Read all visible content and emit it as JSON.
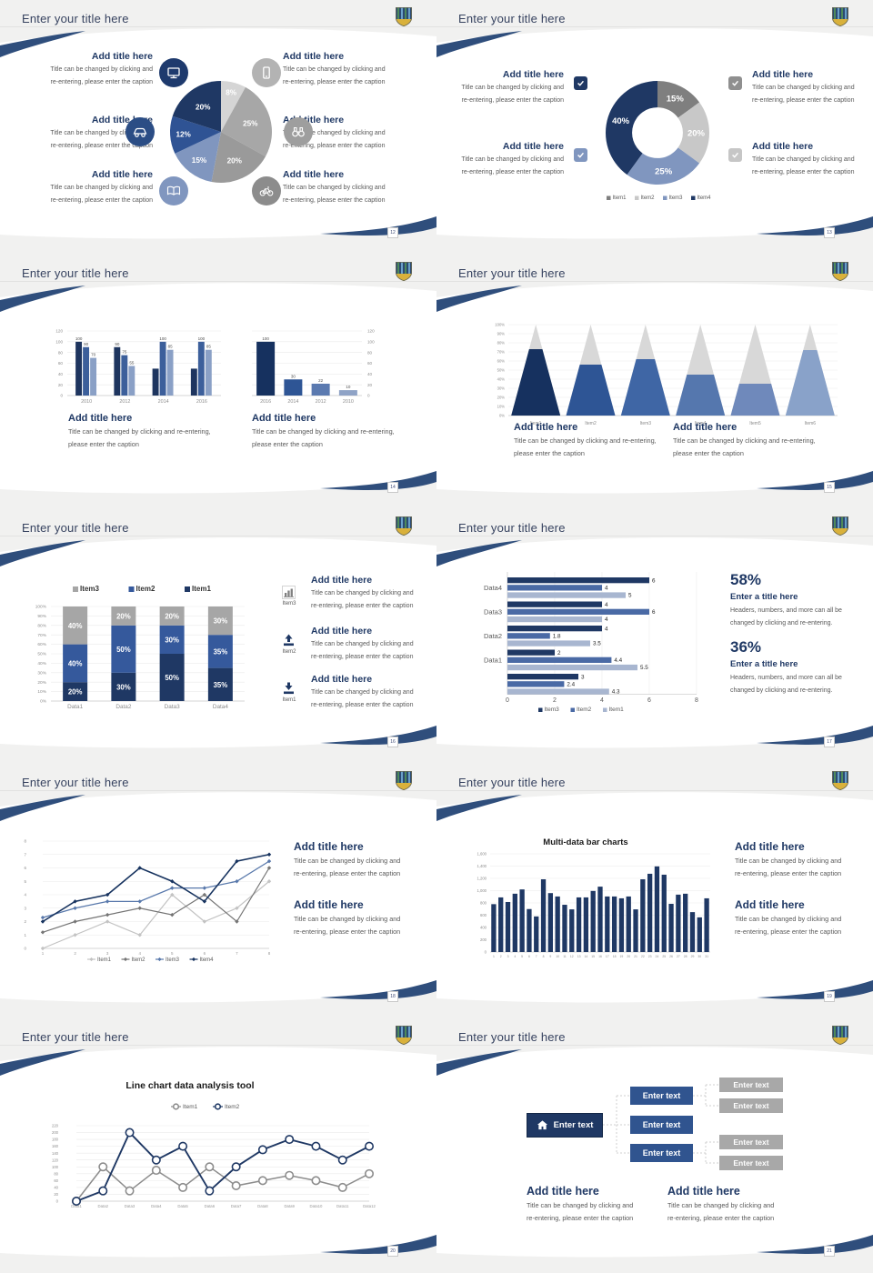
{
  "global": {
    "slide_title": "Enter your title here",
    "add_title": "Add title here",
    "enter_a_title": "Enter a title here",
    "enter_text": "Enter text",
    "captions": {
      "a1": "Title can be changed by clicking and",
      "a2": "re-entering, please enter the caption",
      "b1": "Title can be changed by clicking and re-entering,",
      "b2": "please enter the caption",
      "c1": "Headers, numbers, and more can all be",
      "c2": "changed by clicking and re-entering."
    },
    "colors": {
      "navy": "#1f3864",
      "blue": "#35599c",
      "blue_gray": "#8096bf",
      "gray": "#a6a6a6",
      "accent_stripe": "#2f4e7c"
    }
  },
  "slides": [
    {
      "page": "12",
      "icons": [
        "monitor",
        "smartphone",
        "car",
        "binoculars",
        "book",
        "bicycle"
      ]
    },
    {
      "page": "13",
      "icons": [
        "checkbox",
        "checkbox",
        "checkbox",
        "checkbox"
      ]
    },
    {
      "page": "14"
    },
    {
      "page": "15"
    },
    {
      "page": "16",
      "icons": [
        "bar-chart",
        "upload",
        "download"
      ],
      "icon_labels": [
        "Item3",
        "Item2",
        "Item1"
      ]
    },
    {
      "page": "17",
      "stat1": "58%",
      "stat2": "36%"
    },
    {
      "page": "18"
    },
    {
      "page": "19"
    },
    {
      "page": "20"
    },
    {
      "page": "21",
      "icons": [
        "home"
      ]
    }
  ],
  "chart_data": [
    {
      "id": "pie12",
      "type": "pie",
      "slices": [
        {
          "label": "8%",
          "value": 8,
          "color": "#d5d5d5"
        },
        {
          "label": "25%",
          "value": 25,
          "color": "#a7a7a7"
        },
        {
          "label": "20%",
          "value": 20,
          "color": "#9a9a9a"
        },
        {
          "label": "15%",
          "value": 15,
          "color": "#8096bf"
        },
        {
          "label": "12%",
          "value": 12,
          "color": "#2f5394"
        },
        {
          "label": "20%",
          "value": 20,
          "color": "#1f3864"
        }
      ]
    },
    {
      "id": "donut13",
      "type": "pie",
      "inner_ratio": 0.49,
      "slices": [
        {
          "label": "15%",
          "value": 15,
          "color": "#7f7f7f"
        },
        {
          "label": "20%",
          "value": 20,
          "color": "#c8c8c8"
        },
        {
          "label": "25%",
          "value": 25,
          "color": "#8096bf"
        },
        {
          "label": "40%",
          "value": 40,
          "color": "#1f3864"
        }
      ],
      "legend": [
        {
          "label": "Item1",
          "color": "#7f7f7f"
        },
        {
          "label": "Item2",
          "color": "#c8c8c8"
        },
        {
          "label": "Item3",
          "color": "#8096bf"
        },
        {
          "label": "Item4",
          "color": "#1f3864"
        }
      ]
    },
    {
      "id": "bars14a",
      "type": "bar",
      "categories": [
        "2010",
        "2012",
        "2014",
        "2016"
      ],
      "ylim": [
        0,
        120
      ],
      "yticks": [
        "0",
        "20",
        "40",
        "60",
        "80",
        "100",
        "120"
      ],
      "series": [
        {
          "name": "series1",
          "color": "#1e355f",
          "values": [
            100,
            90,
            50,
            50
          ],
          "labels": [
            "100",
            "90",
            null,
            null
          ]
        },
        {
          "name": "series2",
          "color": "#3c5f9b",
          "values": [
            90,
            75,
            100,
            100
          ],
          "labels": [
            "90",
            "75",
            "100",
            "100"
          ]
        },
        {
          "name": "series3",
          "color": "#8aa0c6",
          "values": [
            70,
            55,
            85,
            85
          ],
          "labels": [
            "70",
            "55",
            "85",
            "85"
          ]
        }
      ]
    },
    {
      "id": "bars14b",
      "type": "bar",
      "categories": [
        "2016",
        "2014",
        "2012",
        "2010"
      ],
      "ylim": [
        0,
        120
      ],
      "yticks": [
        "0",
        "20",
        "40",
        "60",
        "80",
        "100",
        "120"
      ],
      "values": [
        100,
        30,
        22,
        10
      ],
      "labels": [
        "100",
        "30",
        "22",
        "10"
      ],
      "bar_colors": [
        "#16315f",
        "#2e5595",
        "#5b7ab0",
        "#8fa3c6"
      ]
    },
    {
      "id": "cones15",
      "type": "cone",
      "categories": [
        "Item1",
        "Item2",
        "Item3",
        "Item4",
        "Item5",
        "Item6"
      ],
      "values": [
        73,
        56,
        62,
        45,
        35,
        72
      ],
      "colors": [
        "#16315f",
        "#2e5595",
        "#3f66a5",
        "#5577ae",
        "#6f89bb",
        "#89a2c9"
      ],
      "top_color": "#d8d8d8",
      "ylim": [
        0,
        100
      ],
      "yticks": [
        "0%",
        "10%",
        "20%",
        "30%",
        "40%",
        "50%",
        "60%",
        "70%",
        "80%",
        "90%",
        "100%"
      ]
    },
    {
      "id": "stack16",
      "type": "stacked_bar",
      "categories": [
        "Data1",
        "Data2",
        "Data3",
        "Data4"
      ],
      "ylim": [
        0,
        100
      ],
      "yticks": [
        "0%",
        "10%",
        "20%",
        "30%",
        "40%",
        "50%",
        "60%",
        "70%",
        "80%",
        "90%",
        "100%"
      ],
      "series": [
        {
          "name": "Item1",
          "color": "#1f3864",
          "values": [
            20,
            30,
            50,
            35
          ]
        },
        {
          "name": "Item2",
          "color": "#35599c",
          "values": [
            40,
            50,
            30,
            35
          ]
        },
        {
          "name": "Item3",
          "color": "#a6a6a6",
          "values": [
            40,
            20,
            20,
            30
          ]
        }
      ],
      "legend": [
        {
          "label": "Item3",
          "color": "#a6a6a6"
        },
        {
          "label": "Item2",
          "color": "#35599c"
        },
        {
          "label": "Item1",
          "color": "#1f3864"
        }
      ]
    },
    {
      "id": "hbars17",
      "type": "hbar",
      "xlim": [
        0,
        8
      ],
      "xticks": [
        "0",
        "2",
        "4",
        "6",
        "8"
      ],
      "colors": [
        "#1f3864",
        "#4a6aa5",
        "#a8b6d0"
      ],
      "groups": [
        {
          "label": "Data4",
          "values": [
            6,
            4,
            5
          ]
        },
        {
          "label": "Data3",
          "values": [
            4,
            6,
            4
          ]
        },
        {
          "label": "Data2",
          "values": [
            4,
            1.8,
            3.5
          ]
        },
        {
          "label": "Data1",
          "values": [
            2,
            4.4,
            5.5
          ]
        },
        {
          "label": "",
          "values": [
            3,
            2.4,
            4.3
          ]
        }
      ],
      "legend": [
        {
          "label": "Item3",
          "color": "#1f3864"
        },
        {
          "label": "Item2",
          "color": "#4a6aa5"
        },
        {
          "label": "Item1",
          "color": "#a8b6d0"
        }
      ]
    },
    {
      "id": "lines18",
      "type": "line",
      "x_labels": [
        "1",
        "2",
        "3",
        "4",
        "5",
        "6",
        "7",
        "8"
      ],
      "ylim": [
        0,
        8
      ],
      "yticks": [
        "0",
        "1",
        "2",
        "3",
        "4",
        "5",
        "6",
        "7",
        "8"
      ],
      "series": [
        {
          "name": "Item1",
          "color": "#c3c3c3",
          "values": [
            0,
            1,
            2,
            1,
            4,
            2,
            3,
            5
          ]
        },
        {
          "name": "Item2",
          "color": "#757575",
          "values": [
            1.2,
            2,
            2.5,
            3,
            2.5,
            4,
            2,
            6
          ]
        },
        {
          "name": "Item3",
          "color": "#5878ab",
          "values": [
            2.3,
            3,
            3.5,
            3.5,
            4.5,
            4.5,
            5,
            6.5
          ]
        },
        {
          "name": "Item4",
          "color": "#17335f",
          "values": [
            2,
            3.5,
            4,
            6,
            5,
            3.5,
            6.5,
            7
          ]
        }
      ],
      "legend": [
        {
          "label": "Item1",
          "color": "#c3c3c3"
        },
        {
          "label": "Item2",
          "color": "#757575"
        },
        {
          "label": "Item3",
          "color": "#5878ab"
        },
        {
          "label": "Item4",
          "color": "#17335f"
        }
      ]
    },
    {
      "id": "bars19",
      "type": "bar",
      "title": "Multi-data bar charts",
      "color": "#1f3864",
      "ylim": [
        0,
        1600
      ],
      "yticks": [
        "0",
        "200",
        "400",
        "600",
        "800",
        "1,000",
        "1,200",
        "1,400",
        "1,600"
      ],
      "categories": [
        "1",
        "2",
        "3",
        "4",
        "5",
        "6",
        "7",
        "8",
        "9",
        "10",
        "11",
        "12",
        "13",
        "14",
        "15",
        "16",
        "17",
        "18",
        "19",
        "20",
        "21",
        "22",
        "23",
        "24",
        "25",
        "26",
        "27",
        "28",
        "29",
        "30",
        "31"
      ],
      "values": [
        780,
        890,
        815,
        950,
        1020,
        700,
        580,
        1185,
        960,
        905,
        770,
        695,
        890,
        890,
        995,
        1065,
        905,
        905,
        875,
        905,
        695,
        1185,
        1275,
        1395,
        1260,
        785,
        935,
        950,
        650,
        565,
        875
      ]
    },
    {
      "id": "lines20",
      "type": "line",
      "title": "Line chart data analysis tool",
      "x_labels": [
        "Data1",
        "Data2",
        "Data3",
        "Data4",
        "Data5",
        "Data6",
        "Data7",
        "Data8",
        "Data9",
        "Data10",
        "Data11",
        "Data12"
      ],
      "ylim": [
        0,
        220
      ],
      "yticks": [
        "0",
        "20",
        "40",
        "60",
        "80",
        "100",
        "120",
        "140",
        "160",
        "180",
        "200",
        "220"
      ],
      "series": [
        {
          "name": "Item1",
          "color": "#8c8c8c",
          "values": [
            0,
            100,
            30,
            90,
            40,
            100,
            45,
            60,
            75,
            60,
            40,
            80
          ]
        },
        {
          "name": "Item2",
          "color": "#1f3864",
          "values": [
            0,
            30,
            200,
            120,
            160,
            30,
            100,
            150,
            180,
            160,
            120,
            160
          ]
        }
      ],
      "legend": [
        {
          "label": "Item1",
          "color": "#8c8c8c"
        },
        {
          "label": "Item2",
          "color": "#1f3864"
        }
      ]
    }
  ]
}
